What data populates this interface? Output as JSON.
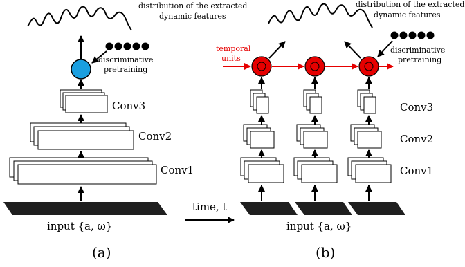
{
  "panel_a": {
    "top_caption_line1": "distribution of the extracted",
    "top_caption_line2": "dynamic features",
    "pretrain_line1": "discriminative",
    "pretrain_line2": "pretraining",
    "conv1": "Conv1",
    "conv2": "Conv2",
    "conv3": "Conv3",
    "input_label": "input {a, ω}",
    "caption": "(a)"
  },
  "panel_b": {
    "top_caption_line1": "distribution of the extracted",
    "top_caption_line2": "dynamic features",
    "pretrain_line1": "discriminative",
    "pretrain_line2": "pretraining",
    "temporal_line1": "temporal",
    "temporal_line2": "units",
    "conv1": "Conv1",
    "conv2": "Conv2",
    "conv3": "Conv3",
    "input_label": "input {a, ω}",
    "caption": "(b)"
  },
  "time_label": "time, t",
  "colors": {
    "node_a": "#1a9fe0",
    "temporal": "#e60000",
    "input_bar": "#1f1f1f"
  }
}
